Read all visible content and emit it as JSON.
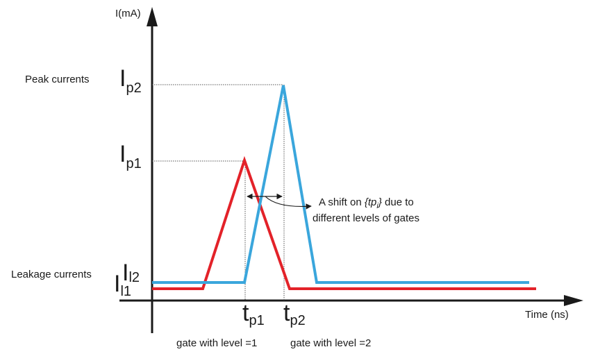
{
  "axes": {
    "y_label": "I(mA)",
    "x_label": "Time (ns)"
  },
  "labels": {
    "peak_currents": "Peak currents",
    "leakage_currents": "Leakage currents",
    "ip2": {
      "main": "I",
      "sub": "p2"
    },
    "ip1": {
      "main": "I",
      "sub": "p1"
    },
    "il2": {
      "main": "I",
      "sub": "l2"
    },
    "il1": {
      "main": "I",
      "sub": "l1"
    },
    "tp1": {
      "main": "t",
      "sub": "p1"
    },
    "tp2": {
      "main": "t",
      "sub": "p2"
    },
    "gate1": "gate with level =1",
    "gate2": "gate with level =2"
  },
  "annotation": {
    "line1_prefix": "A shift on ",
    "line1_italic": "{tp",
    "line1_italic_sub": "i",
    "line1_italic_close": "}",
    "line1_suffix": " due to",
    "line2": "different levels of gates"
  },
  "colors": {
    "red_curve": "#e32229",
    "blue_curve": "#3aa6dc",
    "axis": "#1a1a1a"
  }
}
